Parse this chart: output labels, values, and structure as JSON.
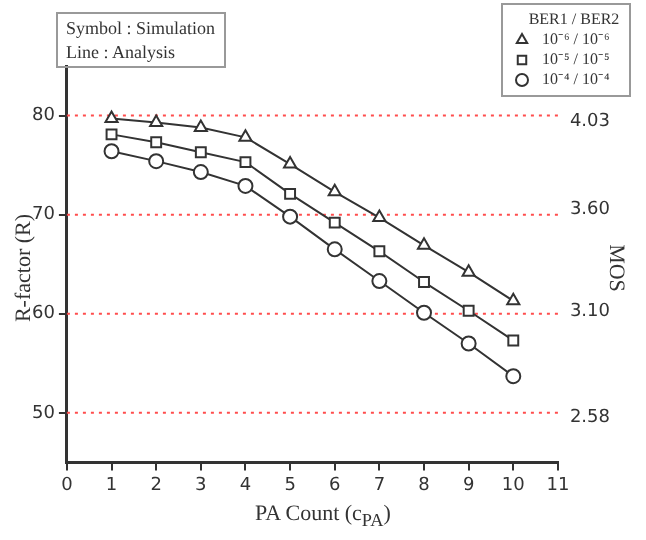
{
  "chart_data": {
    "type": "line",
    "xlabel": "PA Count (c$_{PA}$)",
    "ylabel": "R-factor (R)",
    "y2label": "MOS",
    "legend_title": "BER1 / BER2",
    "legend": "top right",
    "grid": false,
    "annotations": [
      "Symbol : Simulation",
      "Line : Analysis"
    ],
    "x": [
      1,
      2,
      3,
      4,
      5,
      6,
      7,
      8,
      9,
      10
    ],
    "xlim": [
      0,
      11
    ],
    "xticks": [
      0,
      1,
      2,
      3,
      4,
      5,
      6,
      7,
      8,
      9,
      10,
      11
    ],
    "ylim": [
      45,
      85
    ],
    "yticks": [
      50,
      60,
      70,
      80
    ],
    "y2lim": [
      2.36,
      4.3
    ],
    "y2ticks": [
      2.58,
      {
        "value": 3.1,
        "label": "3.10"
      },
      {
        "value": 3.6,
        "label": "3.60"
      },
      4.03
    ],
    "ref_lines": [
      {
        "axis": "y",
        "value": 80,
        "color": "#ff4d4d",
        "line_style": "dotted"
      },
      {
        "axis": "y",
        "value": 70,
        "color": "#ff4d4d",
        "line_style": "dotted"
      },
      {
        "axis": "y",
        "value": 60,
        "color": "#ff4d4d",
        "line_style": "dotted"
      },
      {
        "axis": "y",
        "value": 50,
        "color": "#ff4d4d",
        "line_style": "dotted"
      }
    ],
    "line_style": "solid",
    "series": [
      {
        "name": "10⁻⁶ / 10⁻⁶",
        "color": "#333333",
        "marker": "triangle",
        "values": [
          79.7,
          79.3,
          78.8,
          77.8,
          75.1,
          72.3,
          69.7,
          66.9,
          64.2,
          61.3
        ]
      },
      {
        "name": "10⁻⁵ / 10⁻⁵",
        "color": "#333333",
        "marker": "square",
        "values": [
          78.1,
          77.3,
          76.3,
          75.3,
          72.1,
          69.2,
          66.3,
          63.2,
          60.3,
          57.3
        ]
      },
      {
        "name": "10⁻⁴ / 10⁻⁴",
        "color": "#333333",
        "marker": "circle",
        "values": [
          76.4,
          75.4,
          74.3,
          72.9,
          69.8,
          66.5,
          63.3,
          60.1,
          57.0,
          53.7
        ]
      }
    ]
  }
}
